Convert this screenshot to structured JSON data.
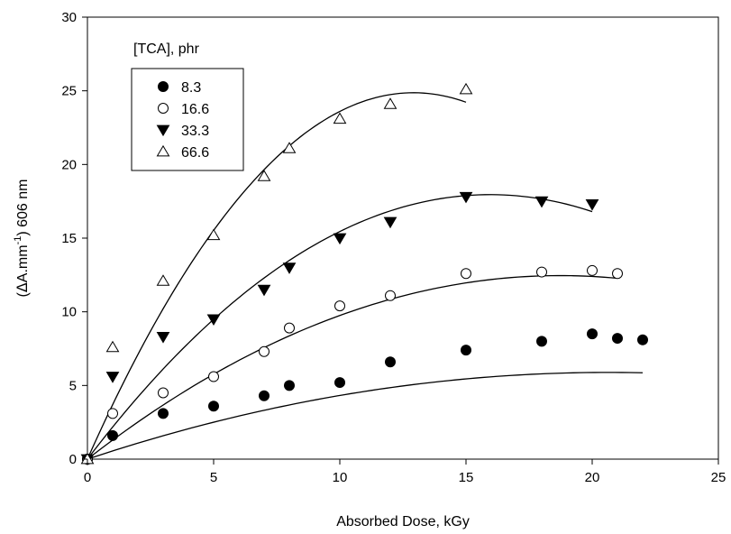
{
  "chart_data": {
    "type": "scatter",
    "xlabel": "Absorbed Dose, kGy",
    "ylabel": {
      "prefix": "(",
      "delta": "Δ",
      "main": "A.mm",
      "superscript": "-1",
      "suffix": ") 606 nm"
    },
    "xlim": [
      0,
      25
    ],
    "ylim": [
      0,
      30
    ],
    "xticks": [
      0,
      5,
      10,
      15,
      20,
      25
    ],
    "yticks": [
      0,
      5,
      10,
      15,
      20,
      25,
      30
    ],
    "grid": false,
    "legend": {
      "title": "[TCA], phr",
      "placement": "top-left"
    },
    "series": [
      {
        "name": "8.3",
        "marker": "filled-circle",
        "x": [
          0,
          1,
          3,
          5,
          7,
          8,
          10,
          12,
          15,
          18,
          20,
          21,
          22
        ],
        "y": [
          0,
          1.6,
          3.1,
          3.6,
          4.3,
          5.0,
          5.2,
          6.6,
          7.4,
          8.0,
          8.5,
          8.2,
          8.1
        ],
        "fit_x": [
          0,
          22
        ],
        "fit": [
          0,
          0.57,
          -0.0138
        ]
      },
      {
        "name": "16.6",
        "marker": "open-circle",
        "x": [
          0,
          1,
          3,
          5,
          7,
          8,
          10,
          12,
          15,
          18,
          20,
          21
        ],
        "y": [
          0,
          3.1,
          4.5,
          5.6,
          7.3,
          8.9,
          10.4,
          11.1,
          12.6,
          12.7,
          12.8,
          12.6
        ],
        "fit_x": [
          0,
          21
        ],
        "fit": [
          0,
          1.33,
          -0.0355
        ]
      },
      {
        "name": "33.3",
        "marker": "filled-triangle-down",
        "x": [
          0,
          1,
          3,
          5,
          7,
          8,
          10,
          12,
          15,
          18,
          20
        ],
        "y": [
          0,
          5.6,
          8.3,
          9.5,
          11.5,
          13.0,
          15.0,
          16.1,
          17.8,
          17.5,
          17.3
        ],
        "fit_x": [
          0,
          20
        ],
        "fit": [
          0,
          2.25,
          -0.0705
        ]
      },
      {
        "name": "66.6",
        "marker": "open-triangle-up",
        "x": [
          0,
          1,
          3,
          5,
          7,
          8,
          10,
          12,
          15
        ],
        "y": [
          0,
          7.6,
          12.1,
          15.2,
          19.2,
          21.1,
          23.1,
          24.1,
          25.1
        ],
        "fit_x": [
          0,
          15
        ],
        "fit": [
          0,
          3.85,
          -0.149
        ]
      }
    ]
  }
}
